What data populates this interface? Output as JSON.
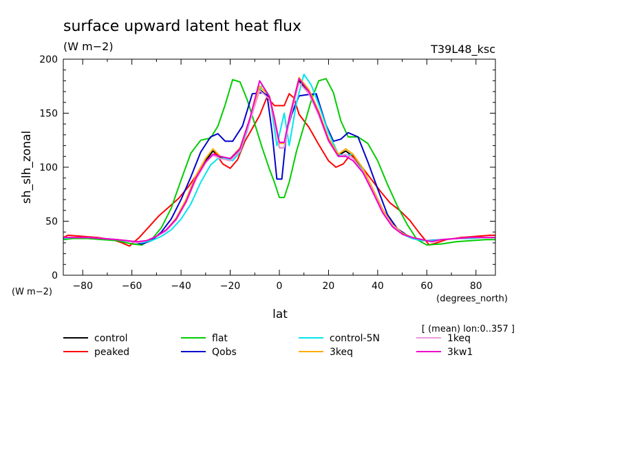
{
  "header": {
    "title": "surface upward latent heat flux",
    "units": "(W m−2)",
    "run": "T39L48_ksc"
  },
  "axes": {
    "y_label": "sh_slh_zonal",
    "y_units": "(W m−2)",
    "x_label": "lat",
    "x_units": "(degrees_north)",
    "note": "[ (mean) lon:0..357 ]"
  },
  "chart_data": {
    "type": "line",
    "title": "surface upward latent heat flux",
    "xlabel": "lat",
    "ylabel": "sh_slh_zonal",
    "xlim": [
      -87.9,
      87.9
    ],
    "ylim": [
      0,
      200
    ],
    "xticks": [
      -80,
      -60,
      -40,
      -20,
      0,
      20,
      40,
      60,
      80
    ],
    "yticks": [
      0,
      50,
      100,
      150,
      200
    ],
    "legend": "below",
    "grid": false,
    "series": [
      {
        "name": "control",
        "color": "#000000",
        "x": [
          -87.9,
          -84,
          -78,
          -72,
          -66,
          -62,
          -58,
          -54,
          -50,
          -46,
          -42,
          -38,
          -34,
          -30,
          -27,
          -24,
          -20,
          -16,
          -12,
          -8,
          -4,
          -2,
          0,
          2,
          4,
          8,
          12,
          16,
          20,
          24,
          27,
          30,
          34,
          38,
          42,
          46,
          50,
          54,
          58,
          62,
          66,
          72,
          78,
          84,
          87.9
        ],
        "y": [
          35,
          35,
          35,
          34,
          33,
          32,
          30,
          32,
          36,
          42,
          52,
          68,
          90,
          106,
          115,
          109,
          107,
          116,
          143,
          172,
          164,
          144,
          118,
          118,
          144,
          180,
          170,
          150,
          125,
          111,
          115,
          110,
          98,
          80,
          61,
          47,
          39,
          35,
          33,
          31,
          33,
          34,
          35,
          35,
          35
        ]
      },
      {
        "name": "peaked",
        "color": "#ff0000",
        "x": [
          -87.9,
          -86,
          -80,
          -74,
          -68,
          -64,
          -61,
          -57,
          -53,
          -49,
          -45,
          -41,
          -37,
          -33,
          -29,
          -26,
          -23,
          -20,
          -17,
          -14,
          -11,
          -8,
          -5,
          -2,
          0,
          2,
          4,
          6,
          8,
          12,
          16,
          20,
          23,
          26,
          29,
          33,
          37,
          41,
          45,
          49,
          53,
          57,
          61,
          64,
          68,
          74,
          80,
          86,
          87.9
        ],
        "y": [
          35,
          37,
          36,
          35,
          33,
          30,
          27,
          35,
          45,
          55,
          63,
          71,
          82,
          95,
          107,
          113,
          103,
          99,
          107,
          124,
          136,
          148,
          165,
          157,
          157,
          157,
          168,
          164,
          149,
          137,
          121,
          106,
          100,
          103,
          112,
          102,
          90,
          78,
          67,
          60,
          51,
          39,
          28,
          30,
          33,
          35,
          36,
          37,
          37
        ]
      },
      {
        "name": "flat",
        "color": "#00cc00",
        "x": [
          -87.9,
          -84,
          -78,
          -72,
          -66,
          -60,
          -56,
          -52,
          -48,
          -44,
          -40,
          -36,
          -32,
          -28,
          -25,
          -22,
          -19,
          -16,
          -13,
          -10,
          -7,
          -4,
          -2,
          0,
          2,
          4,
          7,
          10,
          13,
          16,
          19,
          22,
          25,
          28,
          32,
          36,
          40,
          44,
          48,
          52,
          56,
          60,
          66,
          72,
          78,
          84,
          87.9
        ],
        "y": [
          33,
          34,
          34,
          33,
          32,
          29,
          28,
          33,
          44,
          62,
          88,
          113,
          125,
          127,
          138,
          158,
          181,
          179,
          162,
          140,
          118,
          98,
          86,
          72,
          72,
          86,
          115,
          138,
          162,
          180,
          182,
          169,
          143,
          128,
          128,
          122,
          106,
          84,
          64,
          47,
          33,
          28,
          29,
          31,
          32,
          33,
          33
        ]
      },
      {
        "name": "Qobs",
        "color": "#0000cc",
        "x": [
          -87.9,
          -84,
          -78,
          -72,
          -66,
          -60,
          -56,
          -52,
          -48,
          -44,
          -40,
          -36,
          -32,
          -28,
          -25,
          -22,
          -19,
          -15,
          -11,
          -7,
          -5,
          -3,
          -1,
          1,
          3,
          5,
          8,
          11,
          15,
          19,
          22,
          25,
          28,
          32,
          36,
          40,
          44,
          48,
          52,
          56,
          60,
          66,
          72,
          78,
          84,
          87.9
        ],
        "y": [
          35,
          35,
          35,
          34,
          33,
          31,
          29,
          32,
          40,
          52,
          70,
          91,
          114,
          128,
          131,
          124,
          124,
          138,
          168,
          169,
          167,
          133,
          89,
          89,
          133,
          149,
          166,
          167,
          168,
          139,
          124,
          126,
          132,
          128,
          105,
          80,
          56,
          43,
          37,
          33,
          32,
          33,
          34,
          35,
          35,
          35
        ]
      },
      {
        "name": "control-5N",
        "color": "#00e5ee",
        "x": [
          -87.9,
          -84,
          -78,
          -72,
          -66,
          -60,
          -56,
          -52,
          -48,
          -44,
          -40,
          -36,
          -32,
          -28,
          -25,
          -22,
          -19,
          -16,
          -13,
          -10,
          -7,
          -4,
          -1,
          2,
          4,
          7,
          10,
          13,
          16,
          20,
          24,
          27,
          30,
          34,
          38,
          42,
          46,
          50,
          54,
          58,
          62,
          66,
          72,
          78,
          84,
          87.9
        ],
        "y": [
          34,
          35,
          35,
          34,
          33,
          31,
          30,
          32,
          36,
          42,
          52,
          66,
          86,
          102,
          108,
          108,
          106,
          114,
          134,
          160,
          176,
          166,
          120,
          150,
          120,
          160,
          186,
          176,
          158,
          132,
          112,
          111,
          112,
          98,
          80,
          60,
          46,
          38,
          34,
          32,
          32,
          33,
          34,
          34,
          35,
          35
        ]
      },
      {
        "name": "3keq",
        "color": "#ffaa00",
        "x": [
          -87.9,
          -84,
          -78,
          -72,
          -66,
          -62,
          -58,
          -54,
          -50,
          -46,
          -42,
          -38,
          -34,
          -30,
          -27,
          -24,
          -20,
          -16,
          -12,
          -8,
          -4,
          -2,
          0,
          2,
          4,
          8,
          12,
          16,
          20,
          24,
          27,
          30,
          34,
          38,
          42,
          46,
          50,
          54,
          58,
          62,
          66,
          72,
          78,
          84,
          87.9
        ],
        "y": [
          35,
          35,
          35,
          34,
          33,
          32,
          30,
          32,
          36,
          42,
          53,
          70,
          92,
          108,
          117,
          110,
          108,
          118,
          145,
          175,
          166,
          146,
          122,
          122,
          146,
          183,
          172,
          152,
          127,
          112,
          117,
          112,
          99,
          80,
          61,
          47,
          39,
          35,
          33,
          31,
          33,
          34,
          35,
          35,
          35
        ]
      },
      {
        "name": "1keq",
        "color": "#ee99dd",
        "x": [
          -87.9,
          -84,
          -78,
          -72,
          -66,
          -62,
          -58,
          -54,
          -50,
          -46,
          -42,
          -38,
          -34,
          -30,
          -27,
          -24,
          -20,
          -16,
          -12,
          -8,
          -4,
          -2,
          0,
          2,
          4,
          8,
          12,
          16,
          20,
          24,
          27,
          30,
          34,
          38,
          42,
          46,
          50,
          54,
          58,
          62,
          66,
          72,
          78,
          84,
          87.9
        ],
        "y": [
          35,
          35,
          35,
          34,
          33,
          32,
          30,
          32,
          36,
          41,
          51,
          67,
          88,
          104,
          111,
          108,
          106,
          115,
          142,
          171,
          163,
          142,
          118,
          118,
          142,
          178,
          168,
          148,
          124,
          110,
          112,
          108,
          96,
          78,
          59,
          46,
          38,
          35,
          33,
          31,
          33,
          34,
          35,
          35,
          35
        ]
      },
      {
        "name": "3kw1",
        "color": "#ee00cc",
        "x": [
          -87.9,
          -84,
          -78,
          -72,
          -66,
          -62,
          -58,
          -54,
          -50,
          -46,
          -42,
          -38,
          -34,
          -30,
          -27,
          -24,
          -20,
          -16,
          -12,
          -8,
          -4,
          -2,
          0,
          2,
          4,
          8,
          12,
          16,
          20,
          24,
          27,
          30,
          34,
          38,
          42,
          46,
          50,
          54,
          58,
          62,
          66,
          72,
          78,
          84,
          87.9
        ],
        "y": [
          35,
          35,
          35,
          34,
          33,
          32,
          31,
          32,
          36,
          42,
          52,
          68,
          90,
          105,
          112,
          110,
          108,
          117,
          145,
          180,
          165,
          145,
          123,
          123,
          145,
          182,
          170,
          150,
          125,
          110,
          110,
          106,
          95,
          77,
          58,
          45,
          38,
          35,
          33,
          31,
          33,
          34,
          35,
          35,
          35
        ]
      }
    ]
  }
}
